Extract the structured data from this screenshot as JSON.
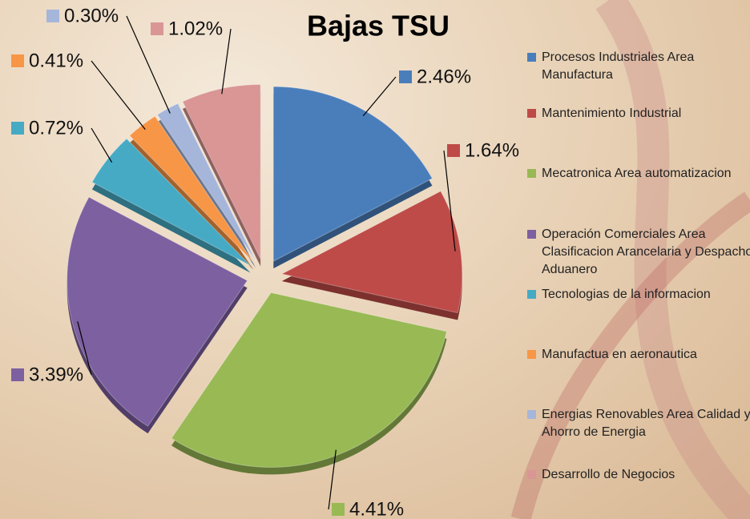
{
  "chart_data": {
    "type": "pie",
    "title": "Bajas TSU",
    "categories": [
      "Procesos Industriales Area Manufactura",
      "Mantenimiento Industrial",
      "Mecatronica Area automatizacion",
      "Operación Comerciales Area Clasificacion Arancelaria y Despacho Aduanero",
      "Tecnologias de la informacion",
      "Manufactua en aeronautica",
      "Energias Renovables Area Calidad y Ahorro de Energia",
      "Desarrollo de Negocios"
    ],
    "values": [
      2.46,
      1.64,
      4.41,
      3.39,
      0.72,
      0.41,
      0.3,
      1.02
    ],
    "value_labels": [
      "2.46%",
      "1.64%",
      "4.41%",
      "3.39%",
      "0.72%",
      "0.41%",
      "0.30%",
      "1.02%"
    ],
    "colors": [
      "#4a7ebb",
      "#be4b48",
      "#98b954",
      "#7d60a0",
      "#46aac5",
      "#f79646",
      "#a5b6da",
      "#d99694"
    ],
    "legend": "right"
  }
}
